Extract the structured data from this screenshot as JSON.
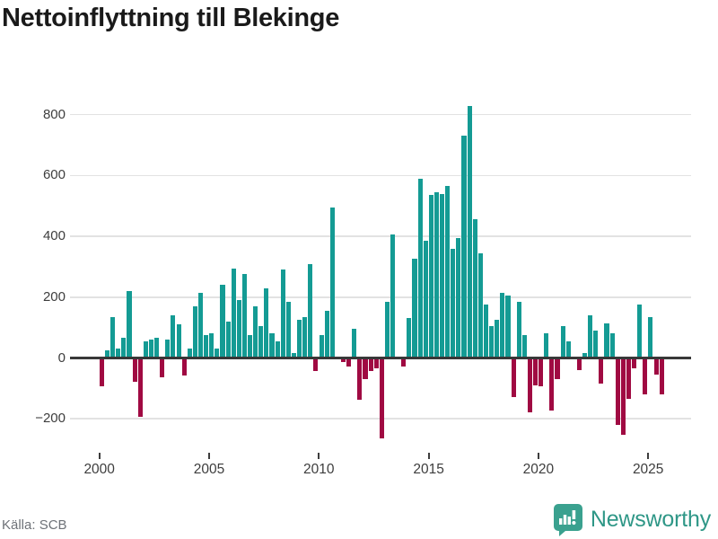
{
  "header": {
    "title": "Nettoinflyttning till Blekinge"
  },
  "footer": {
    "source": "Källa: SCB",
    "brand": "Newsworthy"
  },
  "colors": {
    "positive_bar": "#149b94",
    "negative_bar": "#a00a42",
    "zero_axis": "#383838",
    "gridline": "#e2e2e2",
    "tick_label": "#3d3d3d",
    "title_text": "#1a1a1a",
    "source_text": "#6e7278",
    "brand_text": "#2f9787",
    "brand_icon": "#3aa18f"
  },
  "chart_data": {
    "type": "bar",
    "title": "Nettoinflyttning till Blekinge",
    "frequency": "quarterly",
    "start_period": "2000Q1",
    "end_period": "2025Q3",
    "grid": true,
    "legend": false,
    "xlabel": "",
    "ylabel": "",
    "ylim": [
      -300,
      860
    ],
    "y_ticks": [
      800,
      600,
      400,
      200,
      0,
      -200
    ],
    "y_tick_labels": [
      "800",
      "600",
      "400",
      "200",
      "0",
      "−200"
    ],
    "x_tick_years": [
      2000,
      2005,
      2010,
      2015,
      2020,
      2025
    ],
    "x_tick_labels": [
      "2000",
      "2005",
      "2010",
      "2015",
      "2020",
      "2025"
    ],
    "categories": [
      "2000Q1",
      "2000Q2",
      "2000Q3",
      "2000Q4",
      "2001Q1",
      "2001Q2",
      "2001Q3",
      "2001Q4",
      "2002Q1",
      "2002Q2",
      "2002Q3",
      "2002Q4",
      "2003Q1",
      "2003Q2",
      "2003Q3",
      "2003Q4",
      "2004Q1",
      "2004Q2",
      "2004Q3",
      "2004Q4",
      "2005Q1",
      "2005Q2",
      "2005Q3",
      "2005Q4",
      "2006Q1",
      "2006Q2",
      "2006Q3",
      "2006Q4",
      "2007Q1",
      "2007Q2",
      "2007Q3",
      "2007Q4",
      "2008Q1",
      "2008Q2",
      "2008Q3",
      "2008Q4",
      "2009Q1",
      "2009Q2",
      "2009Q3",
      "2009Q4",
      "2010Q1",
      "2010Q2",
      "2010Q3",
      "2010Q4",
      "2011Q1",
      "2011Q2",
      "2011Q3",
      "2011Q4",
      "2012Q1",
      "2012Q2",
      "2012Q3",
      "2012Q4",
      "2013Q1",
      "2013Q2",
      "2013Q3",
      "2013Q4",
      "2014Q1",
      "2014Q2",
      "2014Q3",
      "2014Q4",
      "2015Q1",
      "2015Q2",
      "2015Q3",
      "2015Q4",
      "2016Q1",
      "2016Q2",
      "2016Q3",
      "2016Q4",
      "2017Q1",
      "2017Q2",
      "2017Q3",
      "2017Q4",
      "2018Q1",
      "2018Q2",
      "2018Q3",
      "2018Q4",
      "2019Q1",
      "2019Q2",
      "2019Q3",
      "2019Q4",
      "2020Q1",
      "2020Q2",
      "2020Q3",
      "2020Q4",
      "2021Q1",
      "2021Q2",
      "2021Q3",
      "2021Q4",
      "2022Q1",
      "2022Q2",
      "2022Q3",
      "2022Q4",
      "2023Q1",
      "2023Q2",
      "2023Q3",
      "2023Q4",
      "2024Q1",
      "2024Q2",
      "2024Q3",
      "2024Q4",
      "2025Q1",
      "2025Q2",
      "2025Q3"
    ],
    "series": [
      {
        "name": "Nettoinflyttning",
        "values": [
          -90,
          25,
          135,
          30,
          65,
          220,
          -75,
          -190,
          55,
          60,
          65,
          -60,
          60,
          140,
          110,
          -55,
          30,
          170,
          215,
          75,
          80,
          30,
          240,
          120,
          295,
          190,
          275,
          75,
          170,
          105,
          230,
          80,
          55,
          290,
          185,
          15,
          125,
          135,
          310,
          -40,
          75,
          155,
          495,
          0,
          -10,
          -25,
          95,
          -135,
          -65,
          -40,
          -30,
          -260,
          185,
          405,
          0,
          -25,
          130,
          325,
          590,
          385,
          535,
          545,
          540,
          565,
          360,
          395,
          730,
          830,
          455,
          345,
          175,
          105,
          125,
          215,
          205,
          -125,
          185,
          75,
          -175,
          -85,
          -90,
          80,
          -170,
          -65,
          105,
          55,
          0,
          -35,
          15,
          140,
          90,
          -80,
          115,
          80,
          -215,
          -250,
          -130,
          -30,
          175,
          -115,
          135,
          -50,
          -115
        ]
      }
    ]
  }
}
